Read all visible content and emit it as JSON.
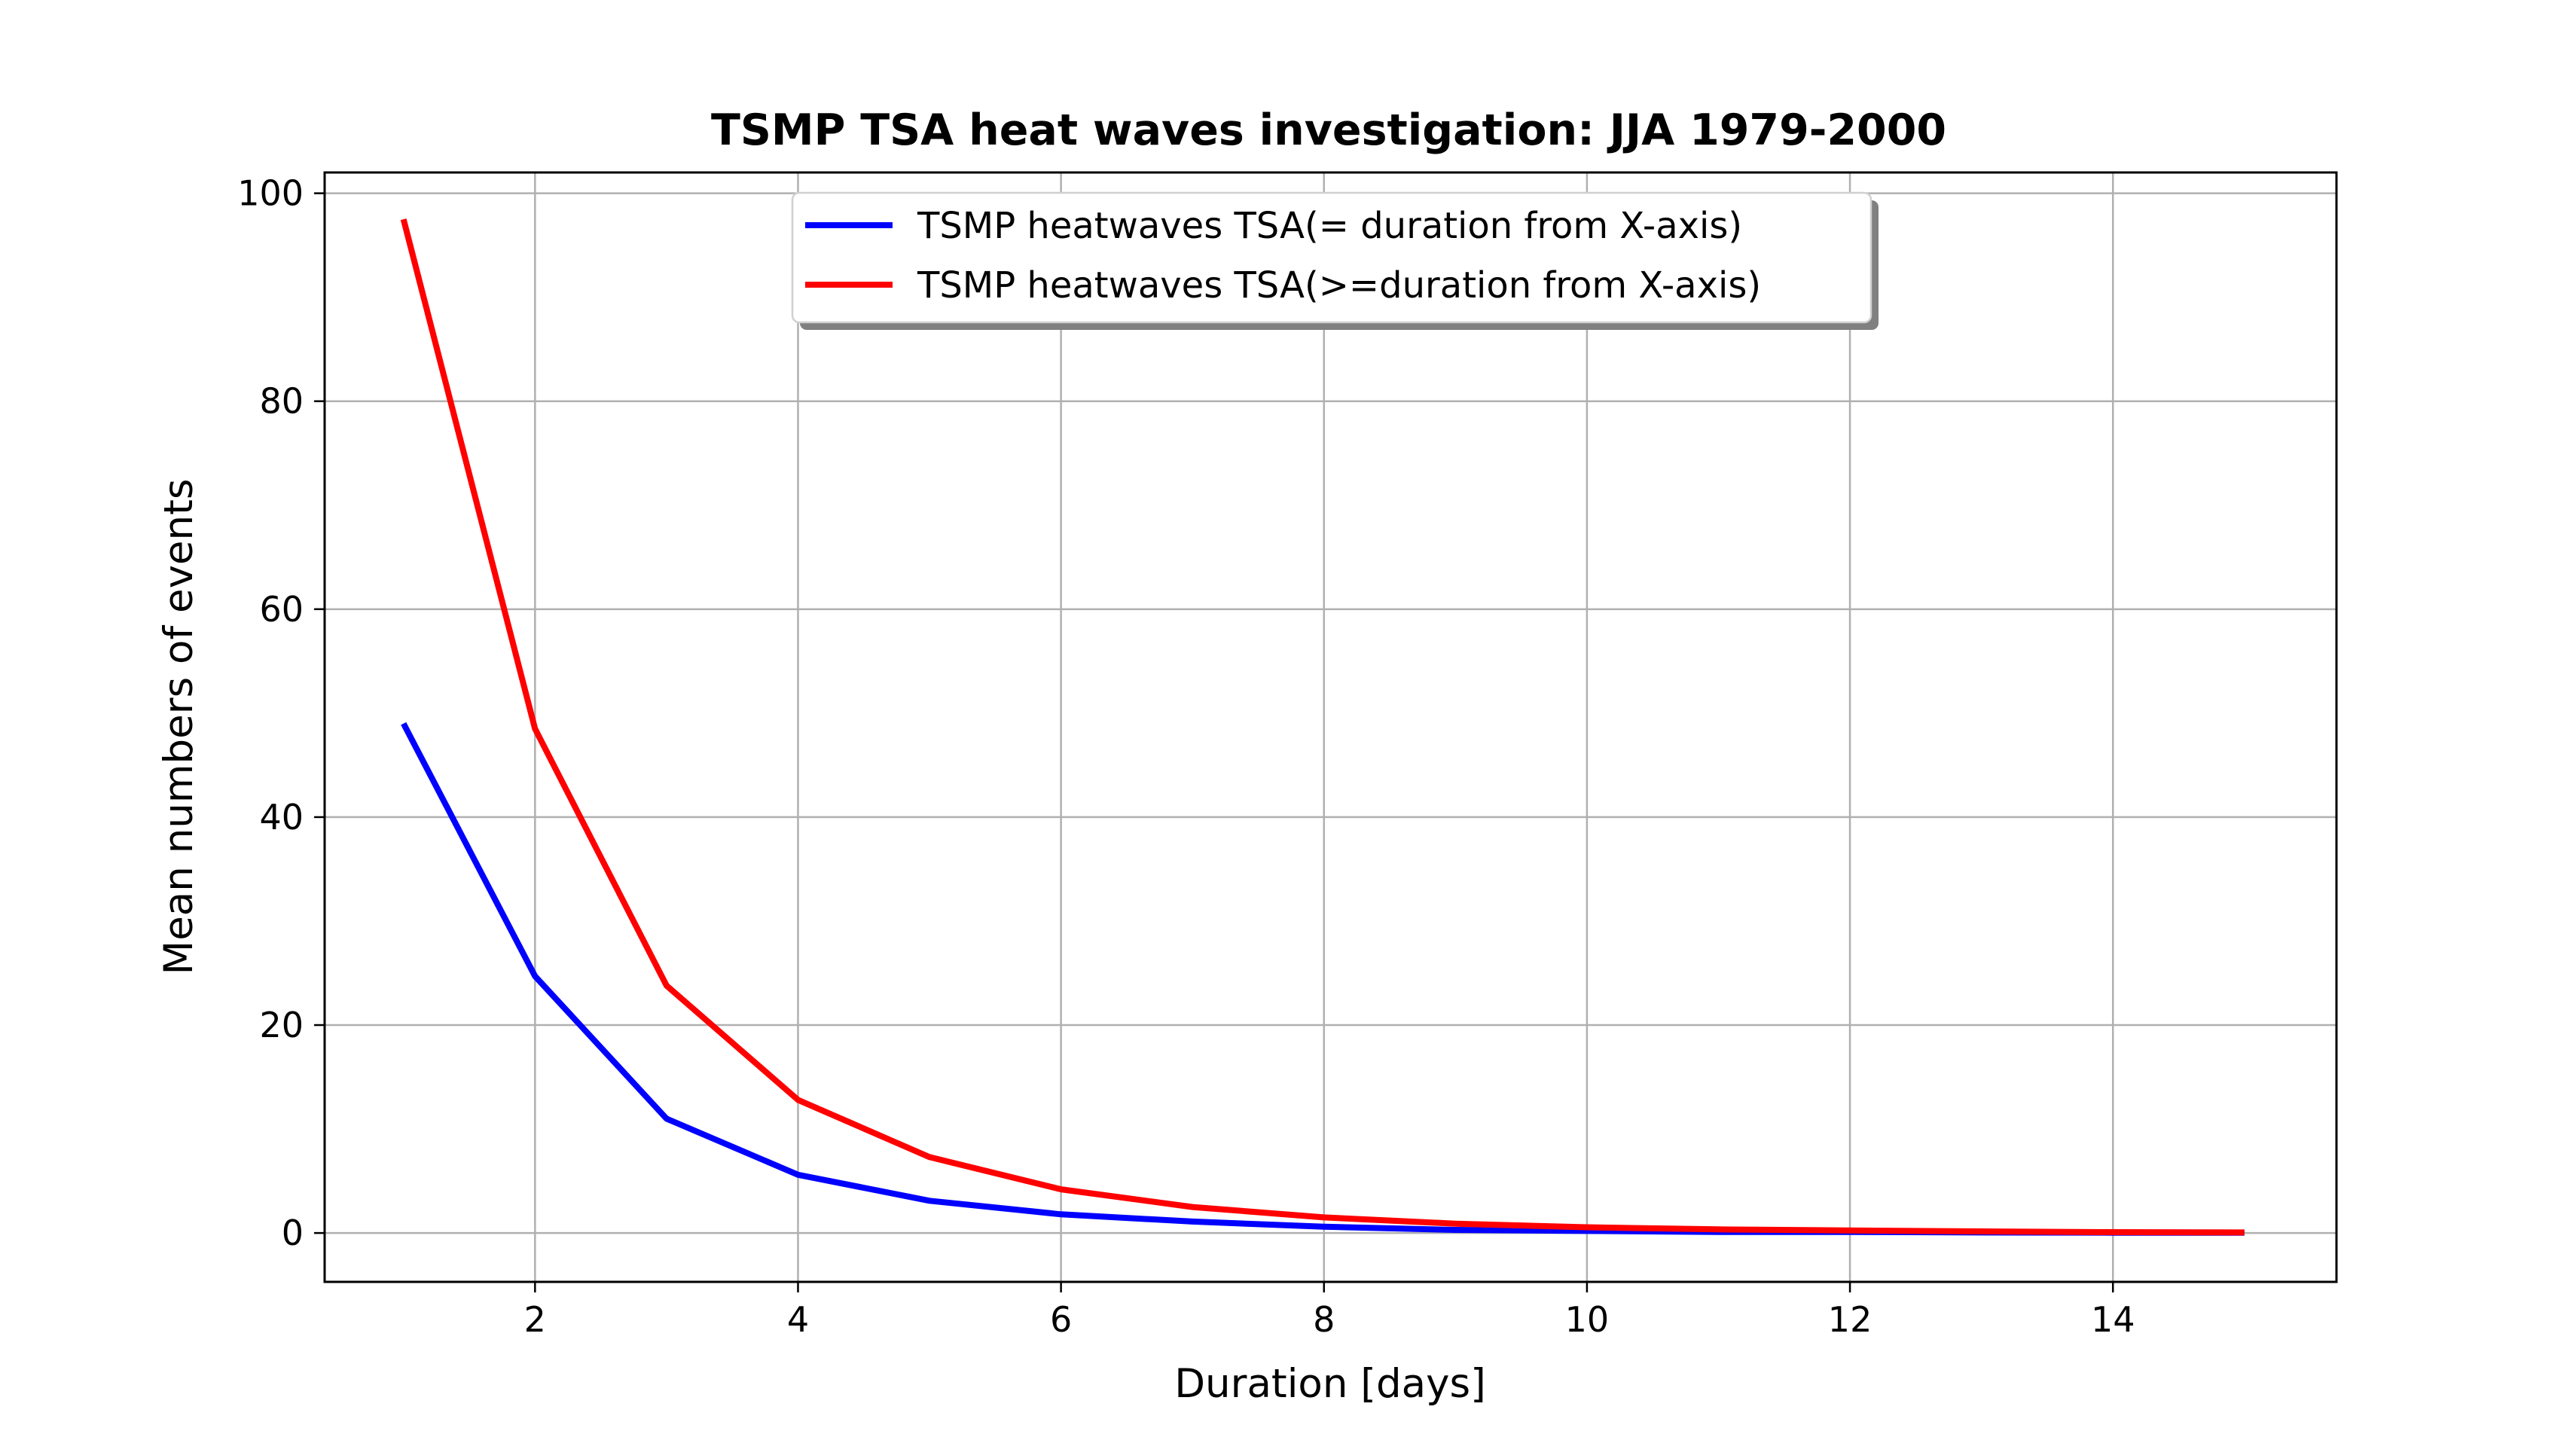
{
  "chart_data": {
    "type": "line",
    "title": "TSMP TSA heat waves investigation: JJA 1979-2000",
    "xlabel": "Duration [days]",
    "ylabel": "Mean numbers of events",
    "xlim": [
      0.4,
      15.7
    ],
    "ylim": [
      -4.7,
      102
    ],
    "xticks": [
      2,
      4,
      6,
      8,
      10,
      12,
      14
    ],
    "yticks": [
      0,
      20,
      40,
      60,
      80,
      100
    ],
    "grid": true,
    "legend_position": "upper-center",
    "x": [
      1,
      2,
      3,
      4,
      5,
      6,
      7,
      8,
      9,
      10,
      11,
      12,
      13,
      14,
      15
    ],
    "series": [
      {
        "name": "TSMP heatwaves TSA(= duration from X-axis)",
        "color": "#0000ff",
        "values": [
          49,
          24.7,
          11,
          5.6,
          3.1,
          1.8,
          1.1,
          0.6,
          0.3,
          0.2,
          0.1,
          0.1,
          0.05,
          0.03,
          0.02
        ]
      },
      {
        "name": "TSMP heatwaves TSA(>=duration from X-axis)",
        "color": "#ff0000",
        "values": [
          97.5,
          48.5,
          23.8,
          12.8,
          7.3,
          4.2,
          2.5,
          1.5,
          0.9,
          0.55,
          0.35,
          0.25,
          0.15,
          0.08,
          0.05
        ]
      }
    ]
  }
}
